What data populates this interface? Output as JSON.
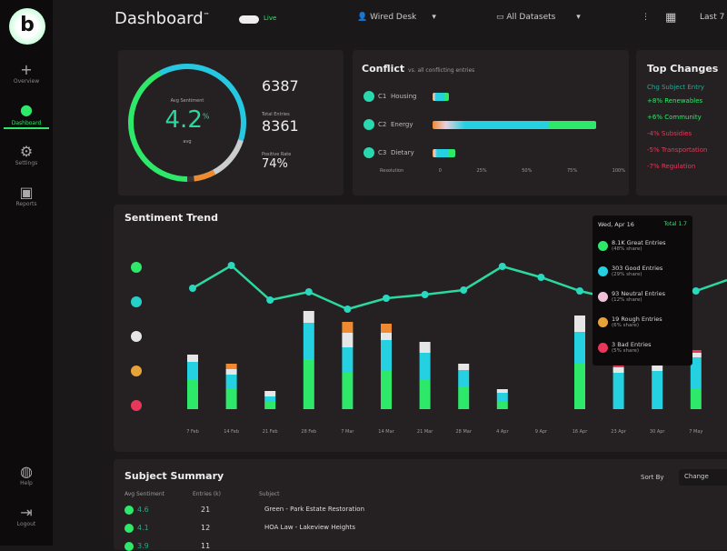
{
  "app": {
    "title": "Dashboard",
    "title_sup": "™",
    "logo": "b",
    "toggle_label": "Live"
  },
  "sidebar": {
    "items": [
      {
        "label": "Overview",
        "icon": "plus-icon",
        "glyph": "+"
      },
      {
        "label": "Dashboard",
        "icon": "dot-icon",
        "glyph": "●",
        "active": true
      },
      {
        "label": "Settings",
        "icon": "gear-icon",
        "glyph": "⚙"
      },
      {
        "label": "Reports",
        "icon": "grid-icon",
        "glyph": "▣"
      }
    ],
    "bottom": [
      {
        "label": "Help",
        "glyph": "◍"
      },
      {
        "label": "Logout",
        "glyph": "⇥"
      }
    ]
  },
  "header": {
    "user": "Wired Desk",
    "user_icon": "user-icon",
    "dataset": "All Datasets",
    "dataset_icon": "monitor-icon",
    "range": "Last 7"
  },
  "gauge": {
    "label": "Avg Sentiment",
    "value": "4.2",
    "unit": "%",
    "sub": "avg",
    "value_fraction": 0.82,
    "stats": [
      {
        "label": "",
        "value": "6387"
      },
      {
        "label": "Total Entries",
        "value": "8361"
      },
      {
        "label": "Positive Rate",
        "value": "74%"
      }
    ]
  },
  "conflict": {
    "title": "Conflict",
    "subtitle": "vs. all conflicting entries",
    "rows": [
      {
        "code": "C1",
        "label": "Housing",
        "value": 8
      },
      {
        "code": "C2",
        "label": "Energy",
        "value": 100
      },
      {
        "code": "C3",
        "label": "Dietary",
        "value": 14
      }
    ],
    "axis": [
      "Resolution",
      "0",
      "25%",
      "50%",
      "75%",
      "100%"
    ]
  },
  "top_changes": {
    "title": "Top Changes",
    "header": "Chg  Subject Entry",
    "rows": [
      {
        "delta": "+8%",
        "label": "Renewables",
        "color": "#2ee86a"
      },
      {
        "delta": "+6%",
        "label": "Community",
        "color": "#2ee86a"
      },
      {
        "delta": "-4%",
        "label": "Subsidies",
        "color": "#e8375a"
      },
      {
        "delta": "-5%",
        "label": "Transportation",
        "color": "#e8375a"
      },
      {
        "delta": "-7%",
        "label": "Regulation",
        "color": "#e8375a"
      }
    ]
  },
  "trend": {
    "title": "Sentiment Trend",
    "legend_colors": [
      "#2ee86a",
      "#25d0c9",
      "#e6e6e6",
      "#e8a23a",
      "#e8375a"
    ]
  },
  "chart_data": {
    "type": "bar",
    "stacked": true,
    "with_line": true,
    "categories": [
      "7 Feb",
      "14 Feb",
      "21 Feb",
      "28 Feb",
      "7 Mar",
      "14 Mar",
      "21 Mar",
      "28 Mar",
      "4 Apr",
      "9 Apr",
      "16 Apr",
      "23 Apr",
      "30 Apr",
      "7 May"
    ],
    "series": [
      {
        "color": "#2ee86a",
        "values": [
          32,
          22,
          8,
          55,
          40,
          42,
          32,
          25,
          8,
          0,
          50,
          0,
          0,
          22
        ]
      },
      {
        "color": "#25d0e0",
        "values": [
          20,
          16,
          6,
          40,
          28,
          34,
          30,
          18,
          10,
          0,
          35,
          40,
          42,
          35
        ]
      },
      {
        "color": "#e6e6e6",
        "values": [
          8,
          6,
          6,
          13,
          16,
          8,
          12,
          7,
          4,
          0,
          18,
          6,
          8,
          5
        ]
      },
      {
        "color": "#f08a30",
        "values": [
          0,
          6,
          0,
          0,
          12,
          10,
          0,
          0,
          0,
          0,
          0,
          0,
          0,
          0
        ]
      },
      {
        "color": "#e8375a",
        "values": [
          0,
          0,
          0,
          0,
          0,
          0,
          0,
          0,
          0,
          0,
          0,
          4,
          0,
          3
        ]
      }
    ],
    "line": {
      "color": "#2ad8a0",
      "values": [
        133,
        158,
        120,
        129,
        110,
        122,
        126,
        131,
        157,
        145,
        130,
        120,
        125,
        130
      ]
    }
  },
  "tooltip": {
    "title": "Wed, Apr 16",
    "total": "Total 1.7",
    "items": [
      {
        "label": "8.1K Great Entries",
        "sub": "(48% share)",
        "color": "#2ee86a"
      },
      {
        "label": "303 Good Entries",
        "sub": "(29% share)",
        "color": "#25d0e0"
      },
      {
        "label": "93 Neutral Entries",
        "sub": "(12% share)",
        "color": "#f0c0d8"
      },
      {
        "label": "19 Rough Entries",
        "sub": "(6% share)",
        "color": "#e8a23a"
      },
      {
        "label": "3 Bad Entries",
        "sub": "(5% share)",
        "color": "#e8375a"
      }
    ]
  },
  "summary": {
    "title": "Subject Summary",
    "sort_label": "Sort By",
    "sort_value": "Change",
    "columns": [
      "Avg Sentiment",
      "Entries (k)",
      "Subject"
    ],
    "rows": [
      {
        "sent": "4.6",
        "entries": "21",
        "subject": "Green - Park Estate Restoration"
      },
      {
        "sent": "4.1",
        "entries": "12",
        "subject": "HOA Law - Lakeview Heights"
      },
      {
        "sent": "3.9",
        "entries": "11",
        "subject": ""
      }
    ]
  }
}
